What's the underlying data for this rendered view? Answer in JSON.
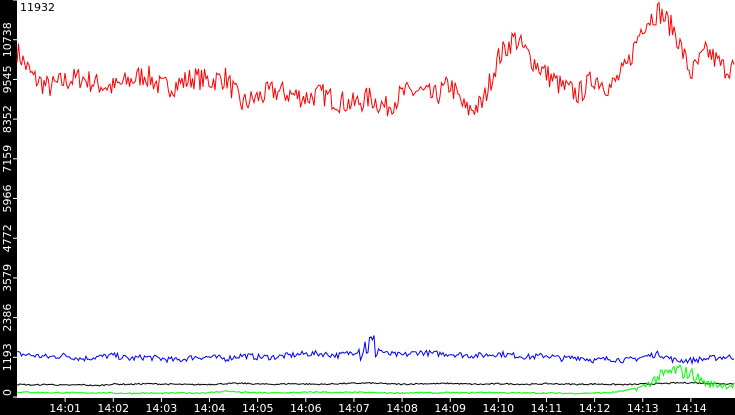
{
  "chart_data": {
    "type": "line",
    "title": "",
    "xlabel": "",
    "ylabel": "",
    "ylim": [
      0,
      11932
    ],
    "xlim": [
      "14:00:00",
      "14:14:55"
    ],
    "grid": false,
    "legend": "none",
    "background": "#ffffff",
    "y_ticks": [
      "0",
      "1193",
      "2386",
      "3579",
      "4772",
      "5966",
      "7159",
      "8352",
      "9545",
      "10738",
      "11932"
    ],
    "x_ticks": [
      "14:01",
      "14:02",
      "14:03",
      "14:04",
      "14:05",
      "14:06",
      "14:07",
      "14:08",
      "14:09",
      "14:10",
      "14:11",
      "14:12",
      "14:13",
      "14:14"
    ],
    "x": [
      "14:00:00",
      "14:00:20",
      "14:00:40",
      "14:01:00",
      "14:01:20",
      "14:01:40",
      "14:02:00",
      "14:02:20",
      "14:02:40",
      "14:03:00",
      "14:03:20",
      "14:03:40",
      "14:04:00",
      "14:04:20",
      "14:04:40",
      "14:05:00",
      "14:05:20",
      "14:05:40",
      "14:06:00",
      "14:06:20",
      "14:06:40",
      "14:07:00",
      "14:07:20",
      "14:07:40",
      "14:08:00",
      "14:08:20",
      "14:08:40",
      "14:09:00",
      "14:09:20",
      "14:09:40",
      "14:10:00",
      "14:10:20",
      "14:10:40",
      "14:11:00",
      "14:11:20",
      "14:11:40",
      "14:12:00",
      "14:12:20",
      "14:12:40",
      "14:13:00",
      "14:13:20",
      "14:13:40",
      "14:14:00",
      "14:14:20",
      "14:14:40"
    ],
    "series": [
      {
        "color": "#ff0000",
        "values": [
          10400,
          9600,
          9300,
          9500,
          9600,
          9400,
          9300,
          9500,
          9700,
          9300,
          9400,
          9600,
          9500,
          9600,
          8800,
          9000,
          9200,
          9100,
          9000,
          9100,
          8900,
          8800,
          9000,
          8700,
          9100,
          9200,
          9000,
          9400,
          8600,
          8800,
          10200,
          10800,
          10200,
          9700,
          9300,
          9100,
          9600,
          9300,
          9900,
          11200,
          11600,
          11000,
          9700,
          10400,
          9900
        ]
      },
      {
        "color": "#0000ff",
        "values": [
          1300,
          1250,
          1200,
          1250,
          1150,
          1200,
          1250,
          1150,
          1200,
          1150,
          1100,
          1200,
          1200,
          1150,
          1250,
          1200,
          1200,
          1250,
          1300,
          1300,
          1250,
          1350,
          1600,
          1300,
          1250,
          1350,
          1300,
          1300,
          1250,
          1250,
          1300,
          1250,
          1200,
          1250,
          1150,
          1200,
          1100,
          1150,
          1100,
          1200,
          1300,
          1100,
          1100,
          1150,
          1200
        ]
      },
      {
        "color": "#000000",
        "values": [
          380,
          360,
          380,
          350,
          370,
          340,
          390,
          380,
          400,
          390,
          380,
          370,
          380,
          400,
          410,
          390,
          380,
          400,
          390,
          380,
          400,
          410,
          420,
          400,
          380,
          400,
          400,
          410,
          390,
          380,
          400,
          390,
          380,
          400,
          390,
          380,
          390,
          380,
          370,
          390,
          400,
          420,
          430,
          410,
          400
        ]
      },
      {
        "color": "#00ff00",
        "values": [
          150,
          140,
          130,
          130,
          120,
          130,
          120,
          110,
          120,
          110,
          120,
          120,
          130,
          180,
          140,
          130,
          120,
          130,
          140,
          150,
          130,
          140,
          130,
          120,
          120,
          130,
          120,
          130,
          120,
          140,
          130,
          120,
          120,
          120,
          110,
          110,
          120,
          130,
          200,
          300,
          600,
          800,
          700,
          400,
          350
        ]
      }
    ]
  }
}
